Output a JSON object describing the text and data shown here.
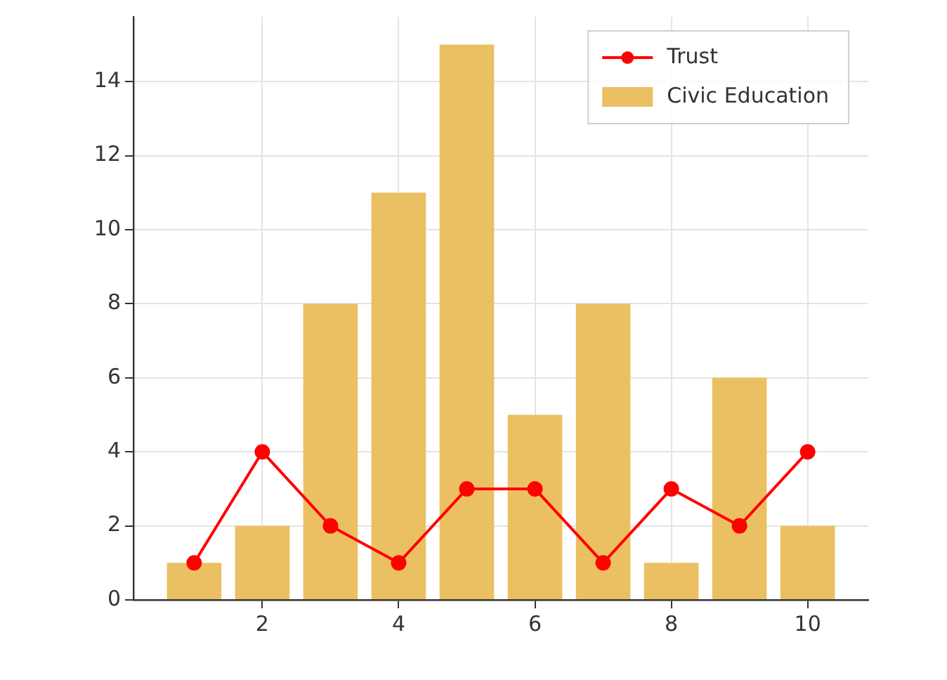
{
  "chart_data": {
    "type": "bar",
    "x": [
      1,
      2,
      3,
      4,
      5,
      6,
      7,
      8,
      9,
      10
    ],
    "series": [
      {
        "name": "Trust",
        "type": "line",
        "color": "#ff0000",
        "values": [
          1,
          4,
          2,
          1,
          3,
          3,
          1,
          3,
          2,
          4
        ]
      },
      {
        "name": "Civic Education",
        "color": "#ebc062",
        "values": [
          1,
          2,
          8,
          11,
          15,
          5,
          8,
          1,
          6,
          2
        ]
      }
    ],
    "xlim": [
      0.11,
      10.89
    ],
    "xticks": [
      2,
      4,
      6,
      8,
      10
    ],
    "ylim": [
      0,
      15.75
    ],
    "yticks": [
      0,
      2,
      4,
      6,
      8,
      10,
      12,
      14
    ],
    "grid": true,
    "legend": "top right",
    "marker": "circle",
    "line_style": "solid"
  }
}
